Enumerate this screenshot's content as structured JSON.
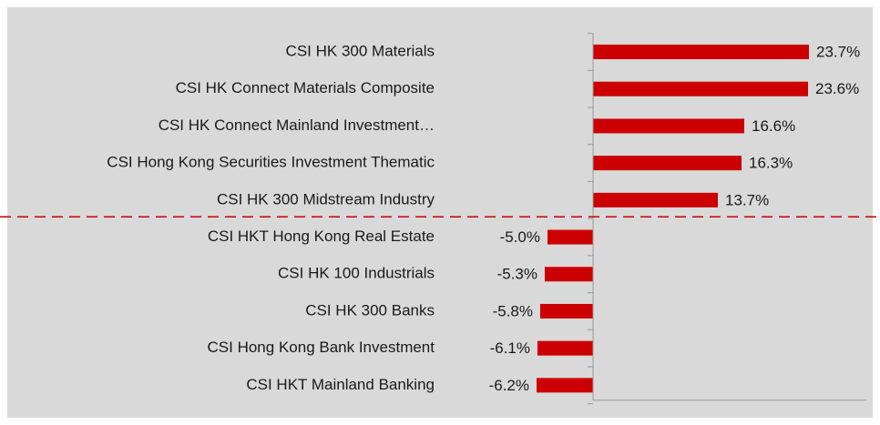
{
  "chart_data": {
    "type": "bar",
    "orientation": "horizontal",
    "categories": [
      "CSI HK 300 Materials",
      "CSI HK Connect Materials Composite",
      "CSI HK Connect Mainland Investment…",
      "CSI Hong Kong Securities Investment Thematic",
      "CSI HK 300 Midstream Industry",
      "CSI HKT Hong Kong Real Estate",
      "CSI HK 100 Industrials",
      "CSI HK 300 Banks",
      "CSI Hong Kong Bank Investment",
      "CSI HKT Mainland Banking"
    ],
    "values": [
      23.7,
      23.6,
      16.6,
      16.3,
      13.7,
      -5.0,
      -5.3,
      -5.8,
      -6.1,
      -6.2
    ],
    "value_labels": [
      "23.7%",
      "23.6%",
      "16.6%",
      "16.3%",
      "13.7%",
      "-5.0%",
      "-5.3%",
      "-5.8%",
      "-6.1%",
      "-6.2%"
    ],
    "color": "#cc0000",
    "xlim": [
      -10,
      30
    ]
  }
}
